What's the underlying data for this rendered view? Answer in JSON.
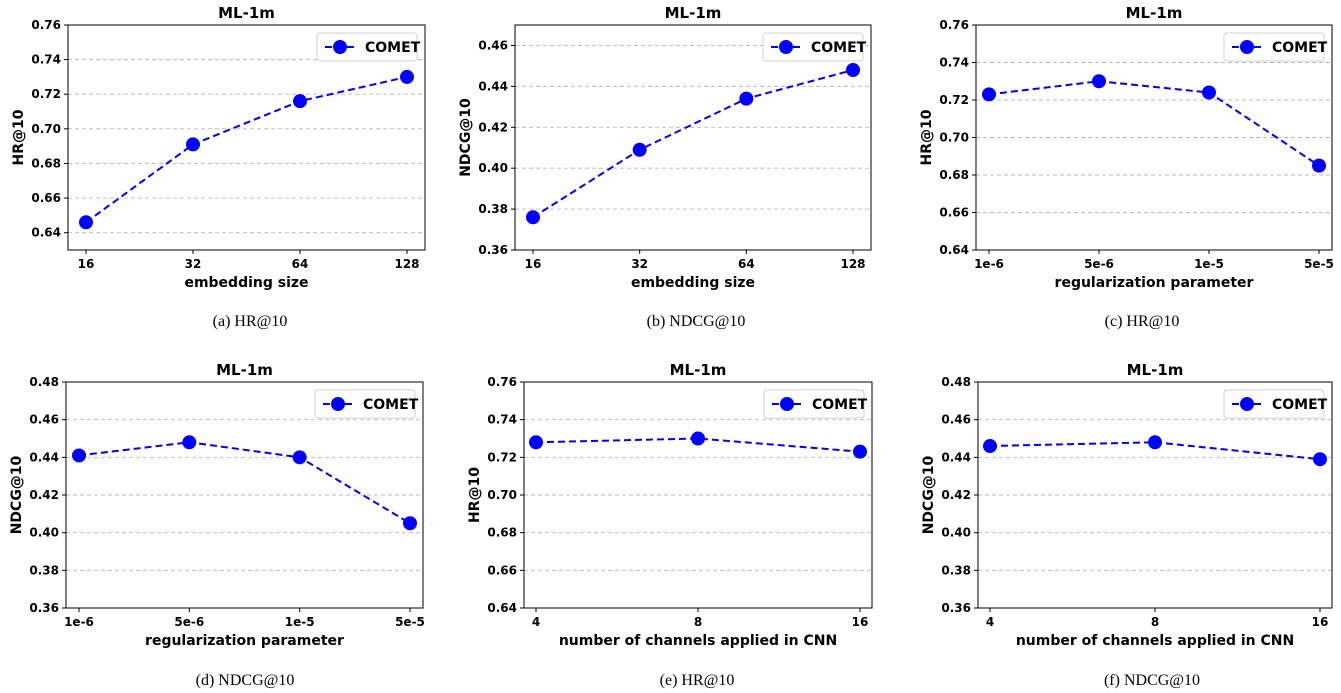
{
  "chart_data": [
    {
      "type": "line",
      "title": "ML-1m",
      "xlabel": "embedding size",
      "ylabel": "HR@10",
      "categories": [
        "16",
        "32",
        "64",
        "128"
      ],
      "series": [
        {
          "name": "COMET",
          "values": [
            0.646,
            0.691,
            0.716,
            0.73
          ]
        }
      ],
      "ylim": [
        0.63,
        0.76
      ],
      "yticks": [
        "0.64",
        "0.66",
        "0.68",
        "0.70",
        "0.72",
        "0.74",
        "0.76"
      ],
      "grid": true,
      "legend": "top-right",
      "caption": "(a)  HR@10",
      "color": "#0000ff"
    },
    {
      "type": "line",
      "title": "ML-1m",
      "xlabel": "embedding size",
      "ylabel": "NDCG@10",
      "categories": [
        "16",
        "32",
        "64",
        "128"
      ],
      "series": [
        {
          "name": "COMET",
          "values": [
            0.376,
            0.409,
            0.434,
            0.448
          ]
        }
      ],
      "ylim": [
        0.36,
        0.47
      ],
      "yticks": [
        "0.36",
        "0.38",
        "0.40",
        "0.42",
        "0.44",
        "0.46"
      ],
      "grid": true,
      "legend": "top-right",
      "caption": "(b)  NDCG@10",
      "color": "#0000ff"
    },
    {
      "type": "line",
      "title": "ML-1m",
      "xlabel": "regularization parameter",
      "ylabel": "HR@10",
      "categories": [
        "1e-6",
        "5e-6",
        "1e-5",
        "5e-5"
      ],
      "series": [
        {
          "name": "COMET",
          "values": [
            0.723,
            0.73,
            0.724,
            0.685
          ]
        }
      ],
      "ylim": [
        0.64,
        0.76
      ],
      "yticks": [
        "0.64",
        "0.66",
        "0.68",
        "0.70",
        "0.72",
        "0.74",
        "0.76"
      ],
      "grid": true,
      "legend": "top-right",
      "caption": "(c)  HR@10",
      "color": "#0000ff"
    },
    {
      "type": "line",
      "title": "ML-1m",
      "xlabel": "regularization parameter",
      "ylabel": "NDCG@10",
      "categories": [
        "1e-6",
        "5e-6",
        "1e-5",
        "5e-5"
      ],
      "series": [
        {
          "name": "COMET",
          "values": [
            0.441,
            0.448,
            0.44,
            0.405
          ]
        }
      ],
      "ylim": [
        0.36,
        0.48
      ],
      "yticks": [
        "0.36",
        "0.38",
        "0.40",
        "0.42",
        "0.44",
        "0.46",
        "0.48"
      ],
      "grid": true,
      "legend": "top-right",
      "caption": "(d)  NDCG@10",
      "color": "#0000ff"
    },
    {
      "type": "line",
      "title": "ML-1m",
      "xlabel": "number of channels applied in CNN",
      "ylabel": "HR@10",
      "categories": [
        "4",
        "8",
        "16"
      ],
      "series": [
        {
          "name": "COMET",
          "values": [
            0.728,
            0.73,
            0.723
          ]
        }
      ],
      "ylim": [
        0.64,
        0.76
      ],
      "yticks": [
        "0.64",
        "0.66",
        "0.68",
        "0.70",
        "0.72",
        "0.74",
        "0.76"
      ],
      "grid": true,
      "legend": "top-right",
      "caption": "(e)  HR@10",
      "color": "#0000ff"
    },
    {
      "type": "line",
      "title": "ML-1m",
      "xlabel": "number of channels applied in CNN",
      "ylabel": "NDCG@10",
      "categories": [
        "4",
        "8",
        "16"
      ],
      "series": [
        {
          "name": "COMET",
          "values": [
            0.446,
            0.448,
            0.439
          ]
        }
      ],
      "ylim": [
        0.36,
        0.48
      ],
      "yticks": [
        "0.36",
        "0.38",
        "0.40",
        "0.42",
        "0.44",
        "0.46",
        "0.48"
      ],
      "grid": true,
      "legend": "top-right",
      "caption": "(f)  NDCG@10",
      "color": "#0000ff"
    }
  ]
}
